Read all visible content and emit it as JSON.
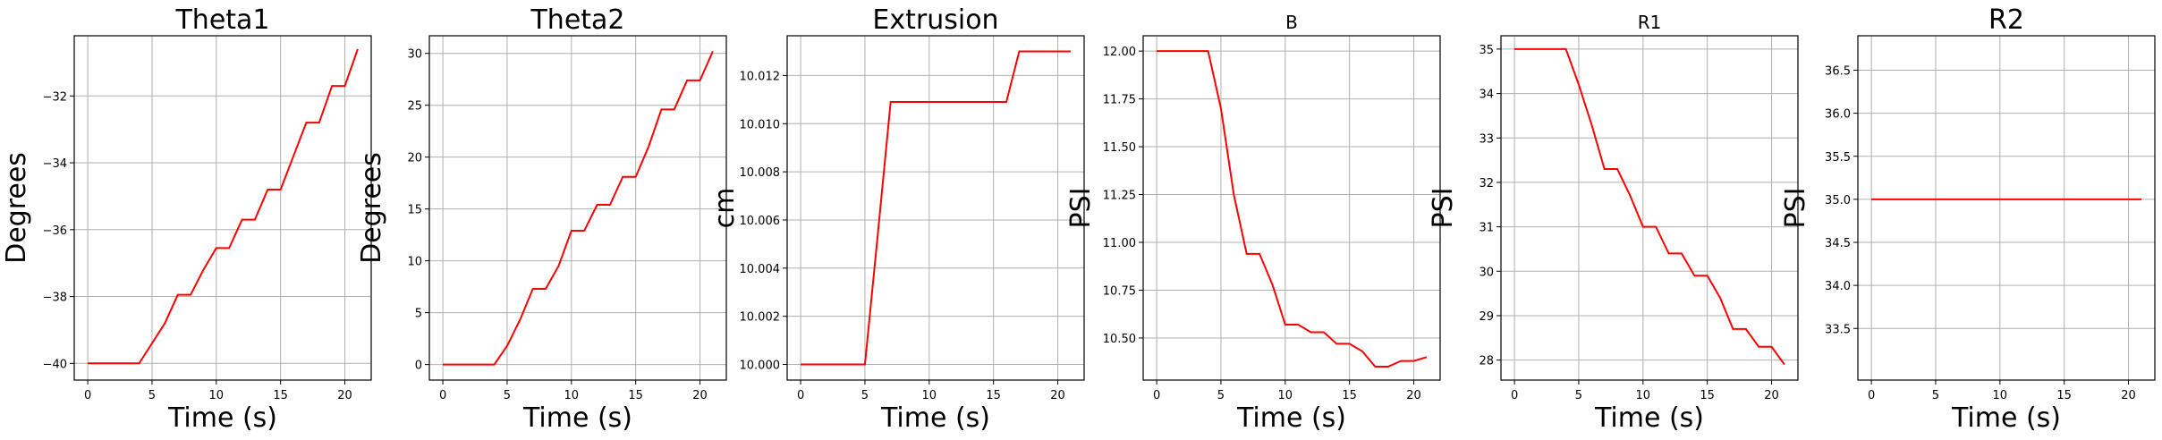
{
  "figure": {
    "line_color": "#ff0000",
    "grid_color": "#b0b0b0",
    "frame_color": "#000000"
  },
  "chart_data": [
    {
      "type": "line",
      "title": "Theta1",
      "xlabel": "Time (s)",
      "ylabel": "Degrees",
      "xlim": [
        -1.05,
        22.05
      ],
      "ylim": [
        -40.5,
        -30.2
      ],
      "xticks": [
        0,
        5,
        10,
        15,
        20
      ],
      "xtick_labels": [
        "0",
        "5",
        "10",
        "15",
        "20"
      ],
      "yticks": [
        -40,
        -38,
        -36,
        -34,
        -32
      ],
      "ytick_labels": [
        "−40",
        "−38",
        "−36",
        "−34",
        "−32"
      ],
      "grid": true,
      "series": [
        {
          "x": [
            0,
            1,
            2,
            3,
            4,
            5,
            6,
            7,
            8,
            9,
            10,
            11,
            12,
            13,
            14,
            15,
            16,
            17,
            18,
            19,
            20,
            21
          ],
          "y": [
            -40,
            -40,
            -40,
            -40,
            -40,
            -39.4,
            -38.8,
            -37.95,
            -37.95,
            -37.2,
            -36.55,
            -36.55,
            -35.7,
            -35.7,
            -34.8,
            -34.8,
            -33.8,
            -32.8,
            -32.8,
            -31.7,
            -31.7,
            -30.6
          ]
        }
      ]
    },
    {
      "type": "line",
      "title": "Theta2",
      "xlabel": "Time (s)",
      "ylabel": "Degrees",
      "xlim": [
        -1.05,
        22.05
      ],
      "ylim": [
        -1.5,
        31.7
      ],
      "xticks": [
        0,
        5,
        10,
        15,
        20
      ],
      "xtick_labels": [
        "0",
        "5",
        "10",
        "15",
        "20"
      ],
      "yticks": [
        0,
        5,
        10,
        15,
        20,
        25,
        30
      ],
      "ytick_labels": [
        "0",
        "5",
        "10",
        "15",
        "20",
        "25",
        "30"
      ],
      "grid": true,
      "series": [
        {
          "x": [
            0,
            1,
            2,
            3,
            4,
            5,
            6,
            7,
            8,
            9,
            10,
            11,
            12,
            13,
            14,
            15,
            16,
            17,
            18,
            19,
            20,
            21
          ],
          "y": [
            0,
            0,
            0,
            0,
            0,
            1.8,
            4.3,
            7.3,
            7.3,
            9.5,
            12.9,
            12.9,
            15.4,
            15.4,
            18.1,
            18.1,
            21.0,
            24.6,
            24.6,
            27.4,
            27.4,
            30.2
          ]
        }
      ]
    },
    {
      "type": "line",
      "title": "Extrusion",
      "xlabel": "Time (s)",
      "ylabel": "cm",
      "xlim": [
        -1.05,
        22.05
      ],
      "ylim": [
        9.99935,
        10.01365
      ],
      "xticks": [
        0,
        5,
        10,
        15,
        20
      ],
      "xtick_labels": [
        "0",
        "5",
        "10",
        "15",
        "20"
      ],
      "yticks": [
        10.0,
        10.002,
        10.004,
        10.006,
        10.008,
        10.01,
        10.012
      ],
      "ytick_labels": [
        "10.000",
        "10.002",
        "10.004",
        "10.006",
        "10.008",
        "10.010",
        "10.012"
      ],
      "grid": true,
      "series": [
        {
          "x": [
            0,
            1,
            2,
            3,
            4,
            5,
            6,
            7,
            8,
            9,
            10,
            11,
            12,
            13,
            14,
            15,
            16,
            17,
            18,
            19,
            20,
            21
          ],
          "y": [
            10.0,
            10.0,
            10.0,
            10.0,
            10.0,
            10.0,
            10.0054,
            10.0109,
            10.0109,
            10.0109,
            10.0109,
            10.0109,
            10.0109,
            10.0109,
            10.0109,
            10.0109,
            10.0109,
            10.013,
            10.013,
            10.013,
            10.013,
            10.013
          ]
        }
      ]
    },
    {
      "type": "line",
      "title": "B",
      "xlabel": "Time (s)",
      "ylabel": "PSI",
      "xlim": [
        -1.05,
        22.05
      ],
      "ylim": [
        10.28,
        12.08
      ],
      "xticks": [
        0,
        5,
        10,
        15,
        20
      ],
      "xtick_labels": [
        "0",
        "5",
        "10",
        "15",
        "20"
      ],
      "yticks": [
        10.5,
        10.75,
        11.0,
        11.25,
        11.5,
        11.75,
        12.0
      ],
      "ytick_labels": [
        "10.50",
        "10.75",
        "11.00",
        "11.25",
        "11.50",
        "11.75",
        "12.00"
      ],
      "grid": true,
      "series": [
        {
          "x": [
            0,
            1,
            2,
            3,
            4,
            5,
            6,
            7,
            8,
            9,
            10,
            11,
            12,
            13,
            14,
            15,
            16,
            17,
            18,
            19,
            20,
            21
          ],
          "y": [
            12.0,
            12.0,
            12.0,
            12.0,
            12.0,
            11.7,
            11.25,
            10.94,
            10.94,
            10.78,
            10.57,
            10.57,
            10.53,
            10.53,
            10.47,
            10.47,
            10.43,
            10.35,
            10.35,
            10.38,
            10.38,
            10.4
          ]
        }
      ]
    },
    {
      "type": "line",
      "title": "R1",
      "xlabel": "Time (s)",
      "ylabel": "PSI",
      "xlim": [
        -1.05,
        22.05
      ],
      "ylim": [
        27.55,
        35.3
      ],
      "xticks": [
        0,
        5,
        10,
        15,
        20
      ],
      "xtick_labels": [
        "0",
        "5",
        "10",
        "15",
        "20"
      ],
      "yticks": [
        28,
        29,
        30,
        31,
        32,
        33,
        34,
        35
      ],
      "ytick_labels": [
        "28",
        "29",
        "30",
        "31",
        "32",
        "33",
        "34",
        "35"
      ],
      "grid": true,
      "series": [
        {
          "x": [
            0,
            1,
            2,
            3,
            4,
            5,
            6,
            7,
            8,
            9,
            10,
            11,
            12,
            13,
            14,
            15,
            16,
            17,
            18,
            19,
            20,
            21
          ],
          "y": [
            35,
            35,
            35,
            35,
            35,
            34.2,
            33.3,
            32.3,
            32.3,
            31.7,
            31.0,
            31.0,
            30.4,
            30.4,
            29.9,
            29.9,
            29.4,
            28.7,
            28.7,
            28.3,
            28.3,
            27.9
          ]
        }
      ]
    },
    {
      "type": "line",
      "title": "R2",
      "xlabel": "Time (s)",
      "ylabel": "PSI",
      "xlim": [
        -1.05,
        22.05
      ],
      "ylim": [
        32.9,
        36.9
      ],
      "xticks": [
        0,
        5,
        10,
        15,
        20
      ],
      "xtick_labels": [
        "0",
        "5",
        "10",
        "15",
        "20"
      ],
      "yticks": [
        33.5,
        34.0,
        34.5,
        35.0,
        35.5,
        36.0,
        36.5
      ],
      "ytick_labels": [
        "33.5",
        "34.0",
        "34.5",
        "35.0",
        "35.5",
        "36.0",
        "36.5"
      ],
      "grid": true,
      "series": [
        {
          "x": [
            0,
            1,
            2,
            3,
            4,
            5,
            6,
            7,
            8,
            9,
            10,
            11,
            12,
            13,
            14,
            15,
            16,
            17,
            18,
            19,
            20,
            21
          ],
          "y": [
            35,
            35,
            35,
            35,
            35,
            35,
            35,
            35,
            35,
            35,
            35,
            35,
            35,
            35,
            35,
            35,
            35,
            35,
            35,
            35,
            35,
            35
          ]
        }
      ]
    }
  ]
}
